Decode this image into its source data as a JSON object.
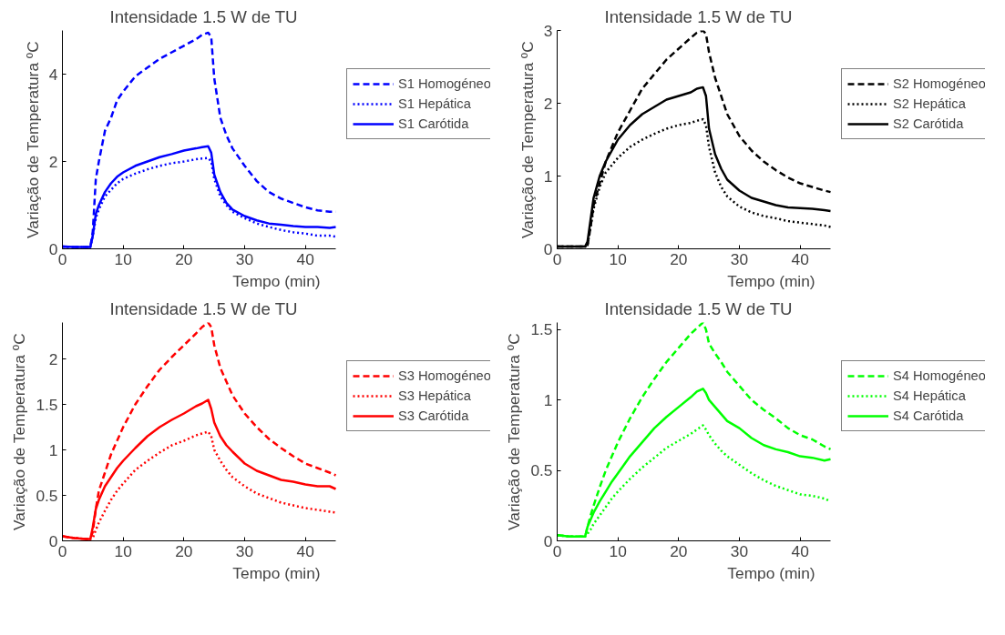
{
  "chart_data": [
    {
      "type": "line",
      "title": "Intensidade 1.5 W de TU",
      "xlabel": "Tempo (min)",
      "ylabel": "Variação de Temperatura ºC",
      "x": [
        0,
        2,
        4,
        4.6,
        5,
        5.5,
        6,
        7,
        8,
        9,
        10,
        12,
        14,
        16,
        18,
        20,
        22,
        23,
        24,
        24.5,
        25,
        26,
        27,
        28,
        30,
        32,
        34,
        36,
        38,
        40,
        42,
        44,
        45
      ],
      "xlim": [
        0,
        45
      ],
      "xticks": [
        0,
        10,
        20,
        30,
        40
      ],
      "ylim": [
        0,
        5
      ],
      "yticks": [
        0,
        2,
        4
      ],
      "grid": false,
      "legend": "right",
      "series": [
        {
          "name": "S1 Homogéneo",
          "color": "#0000ff",
          "line_style": "dashed",
          "values": [
            0.05,
            0.04,
            0.04,
            0.04,
            0.4,
            1.6,
            2.0,
            2.7,
            3.0,
            3.4,
            3.6,
            3.95,
            4.15,
            4.35,
            4.5,
            4.65,
            4.8,
            4.9,
            4.95,
            4.85,
            3.9,
            3.0,
            2.6,
            2.3,
            1.9,
            1.55,
            1.3,
            1.15,
            1.05,
            0.95,
            0.88,
            0.85,
            0.85
          ]
        },
        {
          "name": "S1 Hepática",
          "color": "#0000ff",
          "line_style": "dotted",
          "values": [
            0.05,
            0.04,
            0.04,
            0.04,
            0.3,
            0.7,
            0.9,
            1.2,
            1.35,
            1.5,
            1.6,
            1.72,
            1.82,
            1.9,
            1.96,
            2.0,
            2.05,
            2.07,
            2.08,
            2.0,
            1.6,
            1.2,
            1.0,
            0.85,
            0.7,
            0.58,
            0.5,
            0.43,
            0.38,
            0.35,
            0.3,
            0.3,
            0.28
          ]
        },
        {
          "name": "S1 Carótida",
          "color": "#0000ff",
          "line_style": "solid",
          "values": [
            0.05,
            0.04,
            0.04,
            0.04,
            0.3,
            0.8,
            1.0,
            1.3,
            1.5,
            1.65,
            1.75,
            1.9,
            2.0,
            2.1,
            2.17,
            2.25,
            2.3,
            2.33,
            2.35,
            2.2,
            1.7,
            1.3,
            1.05,
            0.9,
            0.75,
            0.65,
            0.58,
            0.55,
            0.52,
            0.5,
            0.5,
            0.48,
            0.5
          ]
        }
      ]
    },
    {
      "type": "line",
      "title": "Intensidade 1.5 W de TU",
      "xlabel": "Tempo (min)",
      "ylabel": "Variação de Temperatura ºC",
      "x": [
        0,
        2,
        4,
        4.6,
        5,
        5.5,
        6,
        7,
        8,
        9,
        10,
        12,
        14,
        16,
        18,
        20,
        22,
        23,
        24,
        24.5,
        25,
        26,
        27,
        28,
        30,
        32,
        34,
        36,
        38,
        40,
        42,
        44,
        45
      ],
      "xlim": [
        0,
        45
      ],
      "xticks": [
        0,
        10,
        20,
        30,
        40
      ],
      "ylim": [
        0,
        3
      ],
      "yticks": [
        0,
        1,
        2,
        3
      ],
      "grid": false,
      "legend": "right",
      "series": [
        {
          "name": "S2 Homogéneo",
          "color": "#000000",
          "line_style": "dashed",
          "values": [
            0.03,
            0.03,
            0.03,
            0.03,
            0.05,
            0.3,
            0.6,
            0.9,
            1.2,
            1.4,
            1.6,
            1.9,
            2.2,
            2.4,
            2.6,
            2.75,
            2.9,
            2.97,
            3.0,
            2.95,
            2.7,
            2.35,
            2.1,
            1.85,
            1.55,
            1.35,
            1.2,
            1.08,
            0.98,
            0.9,
            0.85,
            0.8,
            0.78
          ]
        },
        {
          "name": "S2 Hepática",
          "color": "#000000",
          "line_style": "dotted",
          "values": [
            0.03,
            0.03,
            0.03,
            0.03,
            0.05,
            0.3,
            0.55,
            0.85,
            1.05,
            1.15,
            1.25,
            1.4,
            1.5,
            1.58,
            1.65,
            1.7,
            1.73,
            1.76,
            1.78,
            1.7,
            1.4,
            1.05,
            0.85,
            0.72,
            0.58,
            0.5,
            0.45,
            0.42,
            0.38,
            0.36,
            0.34,
            0.32,
            0.3
          ]
        },
        {
          "name": "S2 Carótida",
          "color": "#000000",
          "line_style": "solid",
          "values": [
            0.03,
            0.03,
            0.03,
            0.03,
            0.1,
            0.4,
            0.7,
            1.0,
            1.2,
            1.35,
            1.5,
            1.7,
            1.85,
            1.95,
            2.05,
            2.1,
            2.15,
            2.2,
            2.22,
            2.1,
            1.65,
            1.3,
            1.1,
            0.95,
            0.8,
            0.7,
            0.65,
            0.6,
            0.57,
            0.56,
            0.55,
            0.53,
            0.52
          ]
        }
      ]
    },
    {
      "type": "line",
      "title": "Intensidade 1.5 W de TU",
      "xlabel": "Tempo (min)",
      "ylabel": "Variação de Temperatura ºC",
      "x": [
        0,
        2,
        4,
        4.6,
        5,
        5.5,
        6,
        7,
        8,
        9,
        10,
        12,
        14,
        16,
        18,
        20,
        22,
        23,
        24,
        24.5,
        25,
        26,
        27,
        28,
        30,
        32,
        34,
        36,
        38,
        40,
        42,
        44,
        45
      ],
      "xlim": [
        0,
        45
      ],
      "xticks": [
        0,
        10,
        20,
        30,
        40
      ],
      "ylim": [
        0,
        2.4
      ],
      "yticks": [
        0,
        0.5,
        1,
        1.5,
        2
      ],
      "grid": false,
      "legend": "right",
      "series": [
        {
          "name": "S3 Homogéneo",
          "color": "#ff0000",
          "line_style": "dashed",
          "values": [
            0.05,
            0.03,
            0.02,
            0.02,
            0.1,
            0.35,
            0.55,
            0.75,
            0.95,
            1.1,
            1.25,
            1.5,
            1.7,
            1.88,
            2.02,
            2.15,
            2.28,
            2.35,
            2.4,
            2.35,
            2.15,
            1.9,
            1.75,
            1.6,
            1.4,
            1.25,
            1.12,
            1.02,
            0.93,
            0.85,
            0.8,
            0.75,
            0.72
          ]
        },
        {
          "name": "S3 Hepática",
          "color": "#ff0000",
          "line_style": "dotted",
          "values": [
            0.05,
            0.03,
            0.02,
            0.02,
            0.03,
            0.12,
            0.2,
            0.33,
            0.45,
            0.55,
            0.63,
            0.78,
            0.88,
            0.97,
            1.05,
            1.1,
            1.16,
            1.18,
            1.2,
            1.15,
            1.0,
            0.88,
            0.78,
            0.7,
            0.6,
            0.52,
            0.47,
            0.42,
            0.39,
            0.36,
            0.34,
            0.32,
            0.31
          ]
        },
        {
          "name": "S3 Carótida",
          "color": "#ff0000",
          "line_style": "solid",
          "values": [
            0.05,
            0.03,
            0.02,
            0.02,
            0.15,
            0.35,
            0.45,
            0.6,
            0.7,
            0.8,
            0.88,
            1.02,
            1.15,
            1.25,
            1.33,
            1.4,
            1.48,
            1.51,
            1.55,
            1.45,
            1.3,
            1.15,
            1.05,
            0.98,
            0.85,
            0.77,
            0.72,
            0.67,
            0.65,
            0.62,
            0.6,
            0.6,
            0.57
          ]
        }
      ]
    },
    {
      "type": "line",
      "title": "Intensidade 1.5 W de TU",
      "xlabel": "Tempo (min)",
      "ylabel": "Variação de Temperatura ºC",
      "x": [
        0,
        2,
        4,
        4.6,
        5,
        5.5,
        6,
        7,
        8,
        9,
        10,
        12,
        14,
        16,
        18,
        20,
        22,
        23,
        24,
        24.5,
        25,
        26,
        27,
        28,
        30,
        32,
        34,
        36,
        38,
        40,
        42,
        44,
        45
      ],
      "xlim": [
        0,
        45
      ],
      "xticks": [
        0,
        10,
        20,
        30,
        40
      ],
      "ylim": [
        0,
        1.55
      ],
      "yticks": [
        0,
        0.5,
        1,
        1.5
      ],
      "grid": false,
      "legend": "right",
      "series": [
        {
          "name": "S4 Homogéneo",
          "color": "#00ff00",
          "line_style": "dashed",
          "values": [
            0.04,
            0.03,
            0.03,
            0.03,
            0.1,
            0.18,
            0.25,
            0.38,
            0.5,
            0.6,
            0.7,
            0.87,
            1.02,
            1.15,
            1.27,
            1.37,
            1.47,
            1.51,
            1.55,
            1.5,
            1.4,
            1.33,
            1.27,
            1.2,
            1.1,
            1.0,
            0.93,
            0.87,
            0.8,
            0.75,
            0.72,
            0.67,
            0.65
          ]
        },
        {
          "name": "S4 Hepática",
          "color": "#00ff00",
          "line_style": "dotted",
          "values": [
            0.04,
            0.03,
            0.03,
            0.03,
            0.05,
            0.08,
            0.12,
            0.18,
            0.24,
            0.3,
            0.35,
            0.44,
            0.52,
            0.59,
            0.66,
            0.71,
            0.76,
            0.79,
            0.82,
            0.79,
            0.75,
            0.69,
            0.64,
            0.6,
            0.54,
            0.48,
            0.43,
            0.39,
            0.36,
            0.33,
            0.32,
            0.3,
            0.28
          ]
        },
        {
          "name": "S4 Carótida",
          "color": "#00ff00",
          "line_style": "solid",
          "values": [
            0.04,
            0.03,
            0.03,
            0.03,
            0.1,
            0.15,
            0.2,
            0.28,
            0.35,
            0.42,
            0.48,
            0.6,
            0.7,
            0.8,
            0.88,
            0.95,
            1.02,
            1.06,
            1.08,
            1.05,
            1.0,
            0.95,
            0.9,
            0.85,
            0.8,
            0.73,
            0.68,
            0.65,
            0.63,
            0.6,
            0.59,
            0.57,
            0.58
          ]
        }
      ]
    }
  ]
}
